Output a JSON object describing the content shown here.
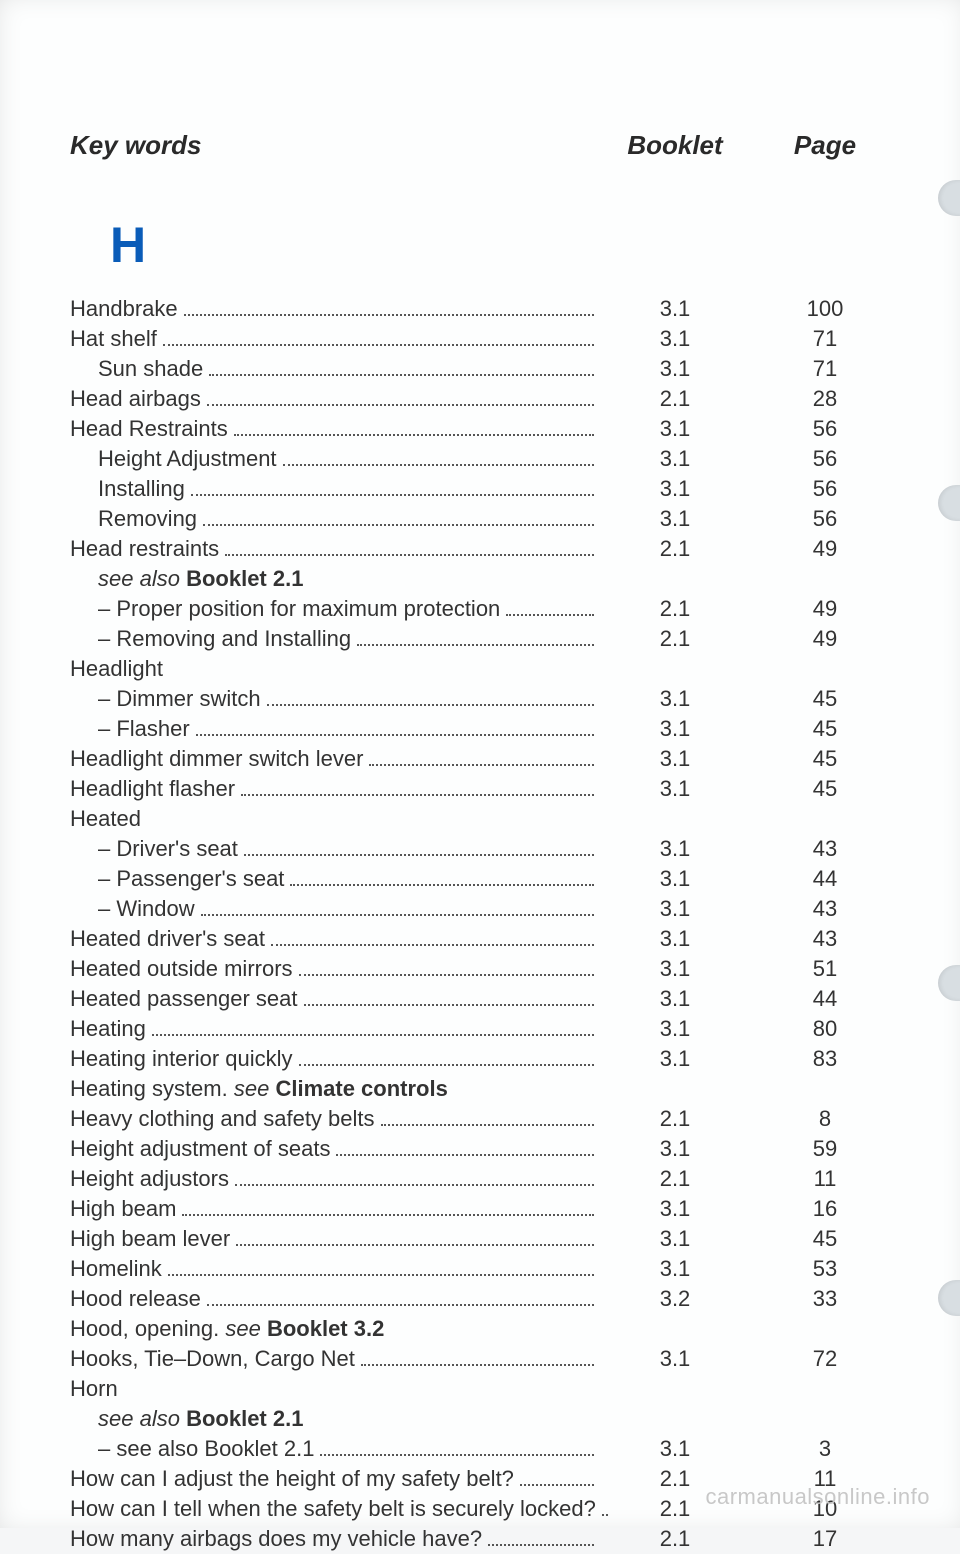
{
  "headers": {
    "key": "Key words",
    "booklet": "Booklet",
    "page": "Page"
  },
  "letter": "H",
  "watermark": "carmanualsonline.info",
  "thumbs": [
    180,
    485,
    965,
    1280
  ],
  "entries": [
    {
      "text": "Handbrake",
      "booklet": "3.1",
      "page": "100",
      "indent": 0,
      "dots": true
    },
    {
      "text": "Hat shelf",
      "booklet": "3.1",
      "page": "71",
      "indent": 0,
      "dots": true
    },
    {
      "text": "Sun shade",
      "booklet": "3.1",
      "page": "71",
      "indent": 1,
      "dots": true
    },
    {
      "text": "Head airbags",
      "booklet": "2.1",
      "page": "28",
      "indent": 0,
      "dots": true
    },
    {
      "text": "Head Restraints",
      "booklet": "3.1",
      "page": "56",
      "indent": 0,
      "dots": true
    },
    {
      "text": "Height Adjustment",
      "booklet": "3.1",
      "page": "56",
      "indent": 1,
      "dots": true
    },
    {
      "text": "Installing",
      "booklet": "3.1",
      "page": "56",
      "indent": 1,
      "dots": true
    },
    {
      "text": "Removing",
      "booklet": "3.1",
      "page": "56",
      "indent": 1,
      "dots": true
    },
    {
      "text": "Head restraints",
      "booklet": "2.1",
      "page": "49",
      "indent": 0,
      "dots": true
    },
    {
      "html": "<span class='kw-see'>see also</span> <b>Booklet 2.1</b>",
      "indent": 1,
      "dots": false,
      "see": true
    },
    {
      "text": "– Proper position for maximum protection",
      "booklet": "2.1",
      "page": "49",
      "indent": 1,
      "dots": true
    },
    {
      "text": "– Removing and Installing",
      "booklet": "2.1",
      "page": "49",
      "indent": 1,
      "dots": true
    },
    {
      "text": "Headlight",
      "indent": 0,
      "dots": false
    },
    {
      "text": "– Dimmer switch",
      "booklet": "3.1",
      "page": "45",
      "indent": 1,
      "dots": true
    },
    {
      "text": "– Flasher",
      "booklet": "3.1",
      "page": "45",
      "indent": 1,
      "dots": true
    },
    {
      "text": "Headlight dimmer switch lever",
      "booklet": "3.1",
      "page": "45",
      "indent": 0,
      "dots": true
    },
    {
      "text": "Headlight flasher",
      "booklet": "3.1",
      "page": "45",
      "indent": 0,
      "dots": true
    },
    {
      "text": "Heated",
      "indent": 0,
      "dots": false
    },
    {
      "text": "– Driver's seat",
      "booklet": "3.1",
      "page": "43",
      "indent": 1,
      "dots": true
    },
    {
      "text": "– Passenger's seat",
      "booklet": "3.1",
      "page": "44",
      "indent": 1,
      "dots": true
    },
    {
      "text": "– Window",
      "booklet": "3.1",
      "page": "43",
      "indent": 1,
      "dots": true
    },
    {
      "text": "Heated driver's seat",
      "booklet": "3.1",
      "page": "43",
      "indent": 0,
      "dots": true
    },
    {
      "text": "Heated outside mirrors",
      "booklet": "3.1",
      "page": "51",
      "indent": 0,
      "dots": true
    },
    {
      "text": "Heated passenger seat",
      "booklet": "3.1",
      "page": "44",
      "indent": 0,
      "dots": true
    },
    {
      "text": "Heating",
      "booklet": "3.1",
      "page": "80",
      "indent": 0,
      "dots": true
    },
    {
      "text": "Heating interior quickly",
      "booklet": "3.1",
      "page": "83",
      "indent": 0,
      "dots": true
    },
    {
      "html": "Heating system. <span class='kw-see'>see</span> <b>Climate controls</b>",
      "indent": 0,
      "dots": false,
      "see": true
    },
    {
      "text": "Heavy clothing and safety belts",
      "booklet": "2.1",
      "page": "8",
      "indent": 0,
      "dots": true
    },
    {
      "text": "Height adjustment of seats",
      "booklet": "3.1",
      "page": "59",
      "indent": 0,
      "dots": true
    },
    {
      "text": "Height adjustors",
      "booklet": "2.1",
      "page": "11",
      "indent": 0,
      "dots": true
    },
    {
      "text": "High beam",
      "booklet": "3.1",
      "page": "16",
      "indent": 0,
      "dots": true
    },
    {
      "text": "High beam lever",
      "booklet": "3.1",
      "page": "45",
      "indent": 0,
      "dots": true
    },
    {
      "text": "Homelink",
      "booklet": "3.1",
      "page": "53",
      "indent": 0,
      "dots": true
    },
    {
      "text": "Hood release",
      "booklet": "3.2",
      "page": "33",
      "indent": 0,
      "dots": true
    },
    {
      "html": "Hood, opening. <span class='kw-see'>see</span> <b>Booklet 3.2</b>",
      "indent": 0,
      "dots": false,
      "see": true
    },
    {
      "text": "Hooks, Tie–Down, Cargo Net",
      "booklet": "3.1",
      "page": "72",
      "indent": 0,
      "dots": true
    },
    {
      "text": "Horn",
      "indent": 0,
      "dots": false
    },
    {
      "html": "<span class='kw-see'>see also</span> <b>Booklet 2.1</b>",
      "indent": 1,
      "dots": false,
      "see": true
    },
    {
      "text": "– see also Booklet 2.1",
      "booklet": "3.1",
      "page": "3",
      "indent": 1,
      "dots": true
    },
    {
      "text": "How can I adjust the height of my safety belt?",
      "booklet": "2.1",
      "page": "11",
      "indent": 0,
      "dots": true
    },
    {
      "text": "How can I tell when the safety belt is securely locked?",
      "booklet": "2.1",
      "page": "10",
      "indent": 0,
      "dots": true
    },
    {
      "text": "How many airbags does my vehicle have?",
      "booklet": "2.1",
      "page": "17",
      "indent": 0,
      "dots": true
    }
  ]
}
